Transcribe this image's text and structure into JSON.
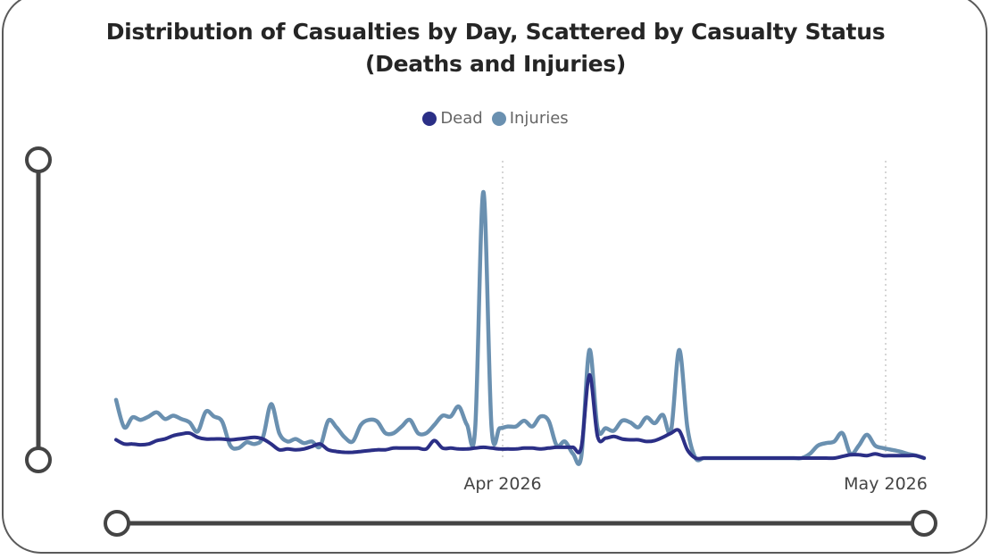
{
  "chart_data": {
    "type": "line",
    "title": "Distribution of Casualties by Day, Scattered by Casualty Status",
    "subtitle": "(Deaths and Injuries)",
    "xlabel": "",
    "ylabel": "",
    "x_tick_labels": [
      "Apr 2026",
      "May 2026"
    ],
    "grid": false,
    "legend_position": "top-center",
    "colors": {
      "Dead": "#2b2f86",
      "Injuries": "#6a90b0"
    },
    "series": [
      {
        "name": "Dead",
        "values": [
          22,
          17,
          17,
          16,
          17,
          21,
          23,
          27,
          29,
          30,
          25,
          23,
          23,
          23,
          22,
          23,
          24,
          25,
          23,
          17,
          10,
          11,
          10,
          11,
          14,
          17,
          10,
          8,
          7,
          7,
          8,
          9,
          10,
          10,
          12,
          12,
          12,
          12,
          11,
          21,
          12,
          12,
          11,
          11,
          12,
          13,
          12,
          11,
          11,
          11,
          12,
          12,
          11,
          12,
          13,
          13,
          13,
          13,
          100,
          26,
          24,
          26,
          23,
          22,
          22,
          20,
          21,
          25,
          30,
          33,
          10,
          0,
          0,
          0,
          0,
          0,
          0,
          0,
          0,
          0,
          0,
          0,
          0,
          0,
          0,
          0,
          0,
          0,
          0,
          2,
          4,
          4,
          3,
          5,
          3,
          3,
          3,
          3,
          3,
          0
        ]
      },
      {
        "name": "Injuries",
        "values": [
          70,
          37,
          49,
          46,
          50,
          55,
          47,
          51,
          47,
          43,
          32,
          56,
          50,
          44,
          15,
          12,
          19,
          17,
          25,
          65,
          30,
          20,
          23,
          18,
          20,
          14,
          45,
          37,
          25,
          20,
          40,
          46,
          44,
          30,
          30,
          38,
          46,
          30,
          30,
          40,
          51,
          50,
          62,
          40,
          35,
          320,
          38,
          36,
          38,
          38,
          45,
          38,
          50,
          45,
          15,
          20,
          5,
          2,
          130,
          36,
          36,
          33,
          45,
          43,
          37,
          49,
          42,
          52,
          33,
          130,
          37,
          0,
          0,
          0,
          0,
          0,
          0,
          0,
          0,
          0,
          0,
          0,
          0,
          0,
          0,
          5,
          15,
          18,
          20,
          30,
          5,
          15,
          28,
          15,
          12,
          10,
          8,
          5,
          3,
          0
        ]
      }
    ],
    "ylim": [
      0,
      320
    ]
  },
  "timeline_slider": {
    "value": 1.0
  },
  "vertical_slider": {
    "value": 1.0
  }
}
